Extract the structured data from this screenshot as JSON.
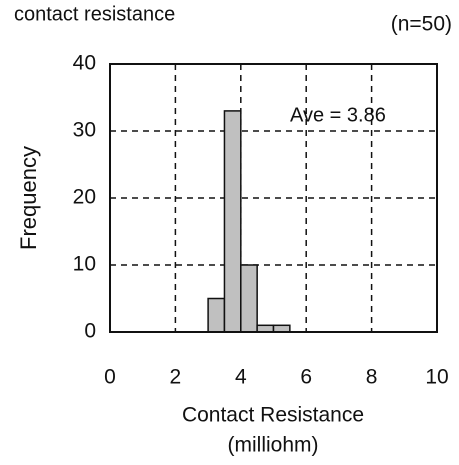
{
  "chart_data": {
    "type": "histogram",
    "title": "contact resistance",
    "subtitle": "(n=50)",
    "annotation": "Ave = 3.86",
    "xlabel": [
      "Contact Resistance",
      "(milliohm)"
    ],
    "ylabel": "Frequency",
    "bins": [
      3,
      3.5,
      4,
      4.5,
      5,
      5.5
    ],
    "values": [
      5,
      33,
      10,
      1,
      1
    ],
    "color": "#c0c0c0",
    "xlim": [
      0,
      10
    ],
    "xticks": [
      0,
      2,
      4,
      6,
      8,
      10
    ],
    "ylim": [
      0,
      40
    ],
    "yticks": [
      0,
      10,
      20,
      30,
      40
    ],
    "grid": true
  }
}
